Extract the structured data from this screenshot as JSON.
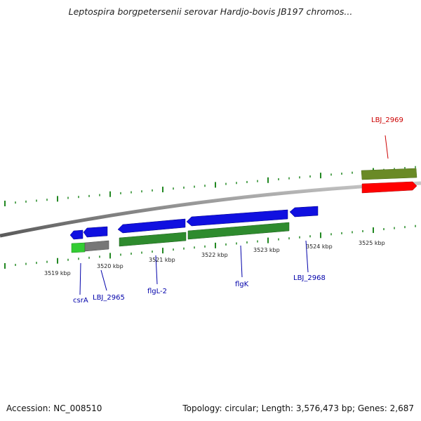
{
  "title": "Leptospira borgpetersenii serovar Hardjo-bovis JB197 chromos...",
  "footer": {
    "accession": "Accession: NC_008510",
    "stats": "Topology: circular; Length: 3,576,473 bp; Genes: 2,687"
  },
  "colors": {
    "cds": "#1010e0",
    "gene": "#2e8b2e",
    "gene_light": "#33cc33",
    "pseudo": "#6a8a26",
    "highlight": "#ff0000",
    "backbone": "#888888",
    "tick": "#228822",
    "label_blue": "#0000aa",
    "label_red": "#cc0000"
  },
  "kbp_labels": [
    "3519 kbp",
    "3520 kbp",
    "3521 kbp",
    "3522 kbp",
    "3523 kbp",
    "3524 kbp",
    "3525 kbp"
  ],
  "gene_labels": [
    {
      "name": "csrA",
      "color": "blue"
    },
    {
      "name": "LBJ_2965",
      "color": "blue"
    },
    {
      "name": "flgL-2",
      "color": "blue"
    },
    {
      "name": "flgK",
      "color": "blue"
    },
    {
      "name": "LBJ_2968",
      "color": "blue"
    },
    {
      "name": "LBJ_2969",
      "color": "red"
    }
  ]
}
